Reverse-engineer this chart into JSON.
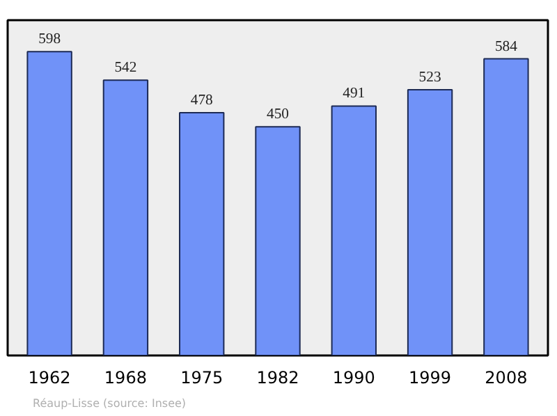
{
  "chart_data": {
    "type": "bar",
    "categories": [
      "1962",
      "1968",
      "1975",
      "1982",
      "1990",
      "1999",
      "2008"
    ],
    "values": [
      598,
      542,
      478,
      450,
      491,
      523,
      584
    ],
    "color": "#7092f8",
    "ylim": [
      0,
      660
    ],
    "data_labels": true,
    "grid": false,
    "tick_labels": "x",
    "annotations": [
      "Réaup-Lisse    (source: Insee)"
    ]
  }
}
